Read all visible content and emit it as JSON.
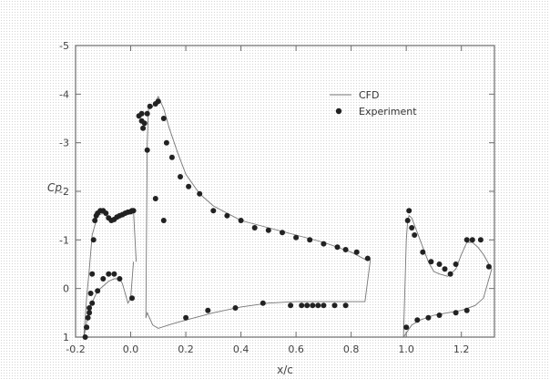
{
  "chart_data": {
    "type": "scatter",
    "title": "",
    "xlabel": "x/c",
    "ylabel": "Cp",
    "xlim": [
      -0.2,
      1.32
    ],
    "ylim": [
      -5,
      1
    ],
    "y_inverted": true,
    "grid": false,
    "legend_position": "top-right",
    "x_ticks": [
      "-0.2",
      "0.0",
      "0.2",
      "0.4",
      "0.6",
      "0.8",
      "1.0",
      "1.2"
    ],
    "y_ticks": [
      "-5",
      "-4",
      "-3",
      "-2",
      "-1",
      "0",
      "1"
    ],
    "series": [
      {
        "name": "CFD",
        "style": "line",
        "color": "#777777",
        "segments": [
          {
            "x": [
              -0.17,
              -0.165,
              -0.16,
              -0.15,
              -0.14,
              -0.12,
              -0.1,
              -0.08,
              -0.06,
              -0.04,
              -0.02,
              0.0,
              0.01,
              0.02
            ],
            "y": [
              1.0,
              0.6,
              0.2,
              -0.4,
              -1.1,
              -1.5,
              -1.55,
              -1.45,
              -1.4,
              -1.45,
              -1.55,
              -1.6,
              -1.6,
              -0.55
            ]
          },
          {
            "x": [
              -0.17,
              -0.15,
              -0.12,
              -0.1,
              -0.08,
              -0.06,
              -0.04,
              -0.03,
              -0.02,
              -0.01,
              0.0,
              0.01
            ],
            "y": [
              1.0,
              0.4,
              0.05,
              -0.05,
              -0.15,
              -0.2,
              -0.2,
              -0.1,
              0.1,
              0.3,
              0.2,
              -0.55
            ]
          },
          {
            "x": [
              0.055,
              0.06,
              0.065,
              0.07,
              0.08,
              0.1,
              0.12,
              0.14,
              0.17,
              0.2,
              0.25,
              0.3,
              0.35,
              0.4,
              0.5,
              0.6,
              0.7,
              0.8,
              0.85,
              0.87
            ],
            "y": [
              0.6,
              -3.0,
              -3.8,
              -3.7,
              -3.75,
              -3.95,
              -3.7,
              -3.3,
              -2.8,
              -2.35,
              -1.95,
              -1.7,
              -1.55,
              -1.4,
              -1.25,
              -1.1,
              -0.95,
              -0.75,
              -0.6,
              -0.6
            ]
          },
          {
            "x": [
              0.055,
              0.06,
              0.08,
              0.1,
              0.15,
              0.2,
              0.3,
              0.4,
              0.5,
              0.6,
              0.7,
              0.8,
              0.85,
              0.87
            ],
            "y": [
              0.6,
              0.5,
              0.75,
              0.82,
              0.73,
              0.65,
              0.5,
              0.38,
              0.3,
              0.27,
              0.27,
              0.27,
              0.27,
              -0.6
            ]
          },
          {
            "x": [
              0.99,
              1.0,
              1.005,
              1.01,
              1.02,
              1.05,
              1.08,
              1.1,
              1.12,
              1.15,
              1.18,
              1.2,
              1.22,
              1.24,
              1.25,
              1.26,
              1.28,
              1.3,
              1.31
            ],
            "y": [
              1.0,
              -1.0,
              -1.4,
              -1.5,
              -1.45,
              -1.0,
              -0.55,
              -0.35,
              -0.3,
              -0.25,
              -0.4,
              -0.7,
              -0.95,
              -0.95,
              -0.9,
              -0.85,
              -0.7,
              -0.5,
              -0.4
            ]
          },
          {
            "x": [
              0.99,
              1.02,
              1.05,
              1.1,
              1.15,
              1.2,
              1.25,
              1.28,
              1.31
            ],
            "y": [
              1.0,
              0.75,
              0.65,
              0.55,
              0.5,
              0.45,
              0.35,
              0.2,
              -0.4
            ]
          }
        ]
      },
      {
        "name": "Experiment",
        "style": "markers",
        "color": "#222222",
        "x": [
          -0.165,
          -0.16,
          -0.155,
          -0.15,
          -0.145,
          -0.14,
          -0.135,
          -0.13,
          -0.125,
          -0.12,
          -0.11,
          -0.1,
          -0.09,
          -0.08,
          -0.07,
          -0.06,
          -0.05,
          -0.04,
          -0.03,
          -0.02,
          -0.01,
          0.0,
          0.005,
          0.01,
          -0.16,
          -0.15,
          -0.14,
          -0.12,
          -0.1,
          -0.08,
          -0.06,
          -0.04,
          0.005,
          0.03,
          0.04,
          0.04,
          0.045,
          0.05,
          0.06,
          0.07,
          0.09,
          0.1,
          0.12,
          0.13,
          0.15,
          0.18,
          0.21,
          0.25,
          0.3,
          0.35,
          0.4,
          0.45,
          0.5,
          0.55,
          0.6,
          0.65,
          0.7,
          0.75,
          0.78,
          0.82,
          0.86,
          0.06,
          0.09,
          0.12,
          0.2,
          0.28,
          0.38,
          0.48,
          0.58,
          0.62,
          0.64,
          0.66,
          0.68,
          0.7,
          0.74,
          0.78,
          1.0,
          1.005,
          1.01,
          1.02,
          1.03,
          1.06,
          1.09,
          1.12,
          1.14,
          1.16,
          1.18,
          1.22,
          1.24,
          1.27,
          1.3,
          1.04,
          1.08,
          1.12,
          1.18,
          1.22
        ],
        "y": [
          1.0,
          0.8,
          0.6,
          0.4,
          0.1,
          -0.3,
          -1.0,
          -1.4,
          -1.5,
          -1.55,
          -1.6,
          -1.6,
          -1.55,
          -1.45,
          -1.4,
          -1.42,
          -1.47,
          -1.5,
          -1.52,
          -1.55,
          -1.57,
          -1.58,
          -1.6,
          -1.6,
          0.8,
          0.5,
          0.3,
          0.05,
          -0.2,
          -0.3,
          -0.3,
          -0.2,
          0.2,
          -3.55,
          -3.6,
          -3.45,
          -3.3,
          -3.4,
          -3.6,
          -3.75,
          -3.8,
          -3.85,
          -3.5,
          -3.0,
          -2.7,
          -2.3,
          -2.1,
          -1.95,
          -1.6,
          -1.5,
          -1.4,
          -1.25,
          -1.2,
          -1.15,
          -1.05,
          -1.0,
          -0.92,
          -0.85,
          -0.8,
          -0.75,
          -0.62,
          -2.85,
          -1.85,
          -1.4,
          0.6,
          0.45,
          0.4,
          0.3,
          0.35,
          0.35,
          0.35,
          0.35,
          0.35,
          0.35,
          0.35,
          0.35,
          0.8,
          -1.4,
          -1.6,
          -1.25,
          -1.1,
          -0.75,
          -0.55,
          -0.5,
          -0.4,
          -0.3,
          -0.5,
          -1.0,
          -1.0,
          -1.0,
          -0.45,
          0.65,
          0.6,
          0.55,
          0.5,
          0.45
        ]
      }
    ]
  }
}
